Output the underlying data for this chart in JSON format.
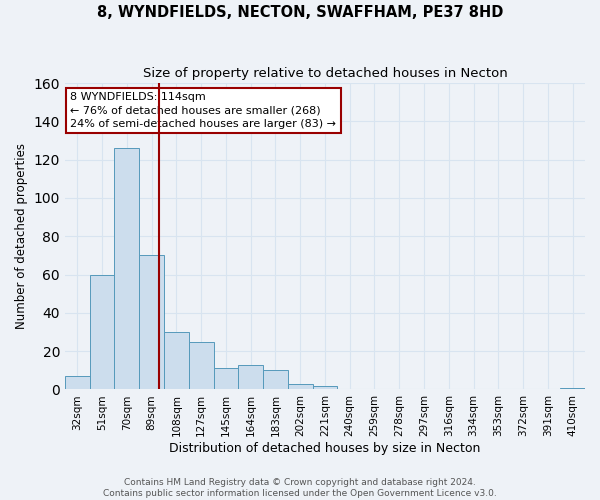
{
  "title": "8, WYNDFIELDS, NECTON, SWAFFHAM, PE37 8HD",
  "subtitle": "Size of property relative to detached houses in Necton",
  "xlabel": "Distribution of detached houses by size in Necton",
  "ylabel": "Number of detached properties",
  "bar_labels": [
    "32sqm",
    "51sqm",
    "70sqm",
    "89sqm",
    "108sqm",
    "127sqm",
    "145sqm",
    "164sqm",
    "183sqm",
    "202sqm",
    "221sqm",
    "240sqm",
    "259sqm",
    "278sqm",
    "297sqm",
    "316sqm",
    "334sqm",
    "353sqm",
    "372sqm",
    "391sqm",
    "410sqm"
  ],
  "bar_values": [
    7,
    60,
    126,
    70,
    30,
    25,
    11,
    13,
    10,
    3,
    2,
    0,
    0,
    0,
    0,
    0,
    0,
    0,
    0,
    0,
    1
  ],
  "bar_color": "#ccdded",
  "bar_edge_color": "#5599bb",
  "ylim": [
    0,
    160
  ],
  "yticks": [
    0,
    20,
    40,
    60,
    80,
    100,
    120,
    140,
    160
  ],
  "vline_x": 3.78,
  "vline_color": "#990000",
  "annotation_title": "8 WYNDFIELDS: 114sqm",
  "annotation_line1": "← 76% of detached houses are smaller (268)",
  "annotation_line2": "24% of semi-detached houses are larger (83) →",
  "footer_line1": "Contains HM Land Registry data © Crown copyright and database right 2024.",
  "footer_line2": "Contains public sector information licensed under the Open Government Licence v3.0.",
  "bg_color": "#eef2f7",
  "grid_color": "#d8e4f0",
  "title_fontsize": 10.5,
  "subtitle_fontsize": 9.5,
  "ylabel_fontsize": 8.5,
  "xlabel_fontsize": 9,
  "tick_fontsize": 7.5,
  "annot_fontsize": 8,
  "footer_fontsize": 6.5
}
